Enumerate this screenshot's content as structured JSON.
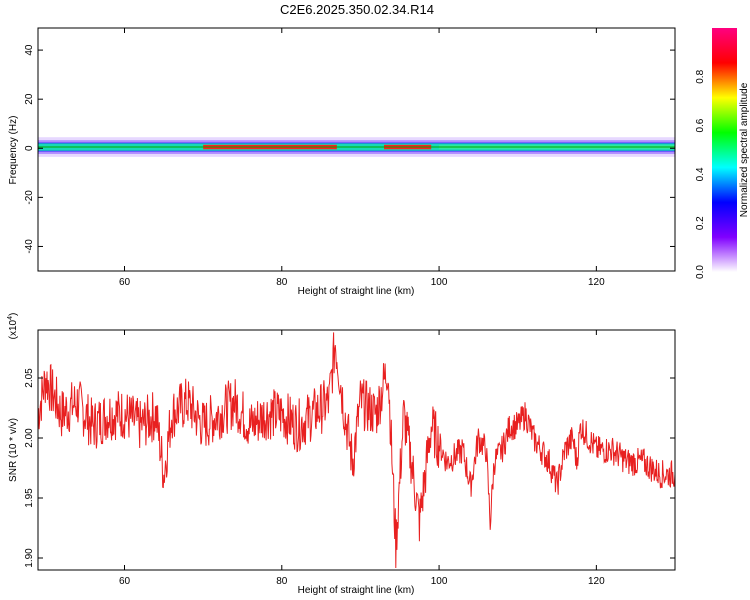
{
  "title": "C2E6.2025.350.02.34.R14",
  "chart_data": [
    {
      "type": "heatmap",
      "xlabel": "Height of straight line (km)",
      "ylabel": "Frequency (Hz)",
      "xlim": [
        49,
        130
      ],
      "ylim": [
        -50,
        49
      ],
      "xticks": [
        "60",
        "80",
        "100",
        "120"
      ],
      "yticks": [
        "-40",
        "-20",
        "0",
        "20",
        "40"
      ],
      "colorbar": {
        "label": "Normalized spectral amplitude",
        "range": [
          0,
          1
        ],
        "ticks": [
          "0.0",
          "0.2",
          "0.4",
          "0.6",
          "0.8"
        ],
        "colors": [
          "#ffffff",
          "#8000ff",
          "#0000ff",
          "#00ffff",
          "#00ff00",
          "#ffff00",
          "#ff0000",
          "#ff0080"
        ]
      },
      "band": {
        "center_hz": 0.5,
        "core_halfwidth_hz": 1.5,
        "halo_halfwidth_hz": 4,
        "peak_segments": [
          {
            "from": 70,
            "to": 87,
            "level": 0.95
          },
          {
            "from": 93,
            "to": 99,
            "level": 0.9
          },
          {
            "from": 100,
            "to": 130,
            "level": 0.45
          }
        ]
      }
    },
    {
      "type": "line",
      "xlabel": "Height of straight line (km)",
      "ylabel": "SNR (10 * v/v)",
      "ylabel_exponent": "(x10",
      "ylabel_exponent_power": "4",
      "ylabel_exponent_close": ")",
      "xlim": [
        49,
        130
      ],
      "ylim": [
        1.89,
        2.09
      ],
      "xticks": [
        "60",
        "80",
        "100",
        "120"
      ],
      "yticks": [
        "1.90",
        "1.95",
        "2.00",
        "2.05"
      ],
      "series": [
        {
          "color": "#e82020",
          "x": [
            49,
            50,
            52,
            54,
            56,
            58,
            60,
            62,
            64,
            65,
            66,
            68,
            70,
            72,
            74,
            76,
            78,
            80,
            82,
            84,
            86,
            86.8,
            88,
            89,
            90,
            92,
            93.5,
            94.5,
            95.5,
            96.5,
            97.5,
            99,
            101,
            103,
            104,
            105,
            106,
            106.5,
            107,
            108,
            109,
            110,
            111,
            112,
            113,
            114,
            115,
            116,
            117,
            117.5,
            118,
            119,
            120,
            122,
            124,
            126,
            128,
            130
          ],
          "y": [
            2.02,
            2.05,
            2.02,
            2.03,
            2.01,
            2.02,
            2.02,
            2.01,
            2.02,
            1.97,
            2.02,
            2.03,
            2.01,
            2.02,
            2.03,
            2.01,
            2.02,
            2.02,
            2.01,
            2.02,
            2.03,
            2.08,
            2.02,
            1.98,
            2.03,
            2.02,
            2.06,
            1.91,
            2.02,
            1.98,
            1.93,
            2.01,
            1.98,
            1.99,
            1.96,
            2.0,
            1.99,
            1.93,
            1.98,
            1.99,
            2.01,
            2.01,
            2.02,
            2.0,
            1.99,
            1.98,
            1.96,
            1.99,
            2.0,
            1.98,
            2.01,
            2.0,
            1.99,
            1.99,
            1.98,
            1.98,
            1.97,
            1.97
          ]
        }
      ]
    }
  ]
}
